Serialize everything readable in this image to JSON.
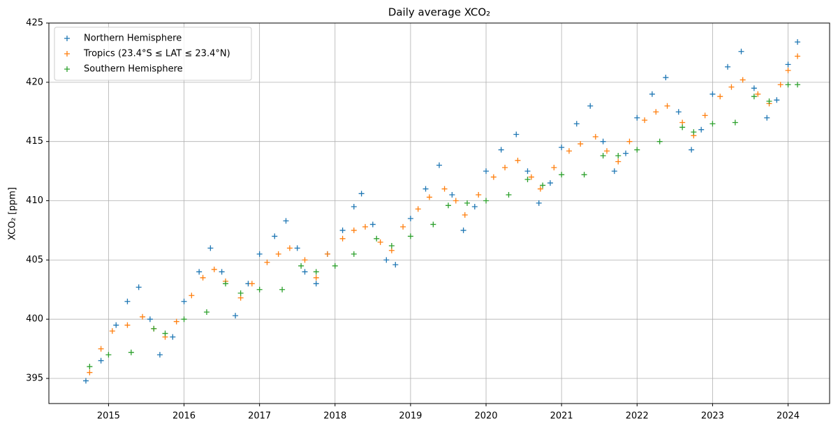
{
  "chart_data": {
    "type": "scatter",
    "title": "Daily average XCO₂",
    "ylabel": "XCO₂ [ppm]",
    "xlim": [
      2014.21,
      2024.55
    ],
    "xticks": [
      2015,
      2016,
      2017,
      2018,
      2019,
      2020,
      2021,
      2022,
      2023,
      2024
    ],
    "ylim": [
      392.88,
      425
    ],
    "yticks": [
      395,
      400,
      405,
      410,
      415,
      420,
      425
    ],
    "grid": true,
    "legend": "upper left",
    "series": [
      {
        "name": "Northern Hemisphere",
        "color": "#1f77b4",
        "x": [
          2014.7,
          2014.9,
          2015.1,
          2015.25,
          2015.4,
          2015.55,
          2015.68,
          2015.85,
          2016.0,
          2016.2,
          2016.35,
          2016.5,
          2016.68,
          2016.85,
          2017.0,
          2017.2,
          2017.35,
          2017.5,
          2017.6,
          2017.75,
          2017.9,
          2018.1,
          2018.25,
          2018.35,
          2018.5,
          2018.68,
          2018.8,
          2019.0,
          2019.2,
          2019.38,
          2019.55,
          2019.7,
          2019.85,
          2020.0,
          2020.2,
          2020.4,
          2020.55,
          2020.7,
          2020.85,
          2021.0,
          2021.2,
          2021.38,
          2021.55,
          2021.7,
          2021.85,
          2022.0,
          2022.2,
          2022.38,
          2022.55,
          2022.72,
          2022.85,
          2023.0,
          2023.2,
          2023.38,
          2023.55,
          2023.72,
          2023.85,
          2024.0,
          2024.125
        ],
        "values": [
          394.8,
          396.5,
          399.5,
          401.5,
          402.7,
          400,
          397,
          398.5,
          401.5,
          404,
          406,
          404,
          400.3,
          403,
          405.5,
          407,
          408.3,
          406,
          404,
          403,
          405.5,
          407.5,
          409.5,
          410.6,
          408,
          405,
          404.6,
          408.5,
          411,
          413,
          410.5,
          407.5,
          409.5,
          412.5,
          414.3,
          415.6,
          412.5,
          409.8,
          411.5,
          414.5,
          416.5,
          418,
          415,
          412.5,
          414,
          417,
          419,
          420.4,
          417.5,
          414.3,
          416,
          419,
          421.3,
          422.6,
          419.5,
          417,
          418.5,
          421.5,
          423.4
        ]
      },
      {
        "name": "Tropics (23.4°S ≤ LAT ≤ 23.4°N)",
        "color": "#ff7f0e",
        "x": [
          2014.75,
          2014.9,
          2015.05,
          2015.25,
          2015.45,
          2015.6,
          2015.75,
          2015.9,
          2016.1,
          2016.25,
          2016.4,
          2016.55,
          2016.75,
          2016.9,
          2017.1,
          2017.25,
          2017.4,
          2017.6,
          2017.75,
          2017.9,
          2018.1,
          2018.25,
          2018.4,
          2018.6,
          2018.75,
          2018.9,
          2019.1,
          2019.25,
          2019.45,
          2019.6,
          2019.72,
          2019.9,
          2020.1,
          2020.25,
          2020.42,
          2020.6,
          2020.72,
          2020.9,
          2021.1,
          2021.25,
          2021.45,
          2021.6,
          2021.75,
          2021.9,
          2022.1,
          2022.25,
          2022.4,
          2022.6,
          2022.75,
          2022.9,
          2023.1,
          2023.25,
          2023.4,
          2023.6,
          2023.75,
          2023.9,
          2024.0,
          2024.125
        ],
        "values": [
          395.5,
          397.5,
          399,
          399.5,
          400.2,
          399.2,
          398.5,
          399.8,
          402,
          403.5,
          404.2,
          403.2,
          401.8,
          403,
          404.8,
          405.5,
          406,
          405,
          403.5,
          405.5,
          406.8,
          407.5,
          407.8,
          406.5,
          405.8,
          407.8,
          409.3,
          410.3,
          411,
          410,
          408.8,
          410.5,
          412,
          412.8,
          413.4,
          412,
          411,
          412.8,
          414.2,
          414.8,
          415.4,
          414.2,
          413.3,
          415,
          416.8,
          417.5,
          418,
          416.6,
          415.5,
          417.2,
          418.8,
          419.6,
          420.2,
          419,
          418.2,
          419.8,
          421,
          422.2
        ]
      },
      {
        "name": "Southern Hemisphere",
        "color": "#2ca02c",
        "x": [
          2014.75,
          2015.0,
          2015.3,
          2015.6,
          2015.75,
          2016.0,
          2016.3,
          2016.55,
          2016.75,
          2017.0,
          2017.3,
          2017.55,
          2017.75,
          2018.0,
          2018.25,
          2018.55,
          2018.75,
          2019.0,
          2019.3,
          2019.5,
          2019.75,
          2020.0,
          2020.3,
          2020.55,
          2020.75,
          2021.0,
          2021.3,
          2021.55,
          2021.75,
          2022.0,
          2022.3,
          2022.6,
          2022.75,
          2023.0,
          2023.3,
          2023.55,
          2023.75,
          2024.0,
          2024.125
        ],
        "values": [
          396,
          397,
          397.2,
          399.2,
          398.8,
          400,
          400.6,
          403,
          402.2,
          402.5,
          402.5,
          404.5,
          404,
          404.5,
          405.5,
          406.8,
          406.2,
          407,
          408,
          409.6,
          409.8,
          410,
          410.5,
          411.8,
          411.3,
          412.2,
          412.2,
          413.8,
          413.8,
          414.3,
          415,
          416.2,
          415.8,
          416.5,
          416.6,
          418.8,
          418.4,
          419.8,
          419.8
        ]
      }
    ]
  }
}
